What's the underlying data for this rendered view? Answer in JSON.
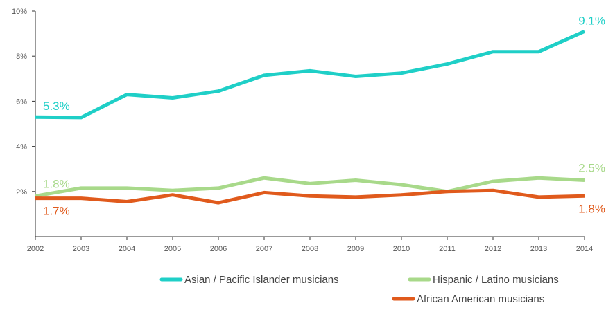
{
  "chart_data": {
    "type": "line",
    "title": "",
    "xlabel": "",
    "ylabel": "",
    "x": [
      2002,
      2003,
      2004,
      2005,
      2006,
      2007,
      2008,
      2009,
      2010,
      2011,
      2012,
      2013,
      2014
    ],
    "x_tick_labels": [
      "2002",
      "2003",
      "2004",
      "2005",
      "2006",
      "2007",
      "2008",
      "2009",
      "2010",
      "2011",
      "2012",
      "2013",
      "2014"
    ],
    "ylim": [
      0,
      10
    ],
    "y_ticks": [
      2,
      4,
      6,
      8,
      10
    ],
    "y_tick_labels": [
      "2%",
      "4%",
      "6%",
      "8%",
      "10%"
    ],
    "grid": false,
    "legend_placement": "bottom-right",
    "series": [
      {
        "name": "Asian / Pacific Islander musicians",
        "color": "#1fcfc7",
        "values": [
          5.3,
          5.28,
          6.3,
          6.15,
          6.45,
          7.15,
          7.35,
          7.1,
          7.25,
          7.65,
          8.2,
          8.2,
          9.1
        ],
        "start_label": "5.3%",
        "end_label": "9.1%"
      },
      {
        "name": "Hispanic / Latino musicians",
        "color": "#a8d98a",
        "values": [
          1.8,
          2.15,
          2.15,
          2.05,
          2.15,
          2.6,
          2.35,
          2.5,
          2.3,
          2.0,
          2.45,
          2.6,
          2.5
        ],
        "start_label": "1.8%",
        "end_label": "2.5%"
      },
      {
        "name": "African American musicians",
        "color": "#e05a1c",
        "values": [
          1.7,
          1.7,
          1.55,
          1.85,
          1.5,
          1.95,
          1.8,
          1.75,
          1.85,
          2.0,
          2.05,
          1.75,
          1.8
        ],
        "start_label": "1.7%",
        "end_label": "1.8%"
      }
    ]
  }
}
